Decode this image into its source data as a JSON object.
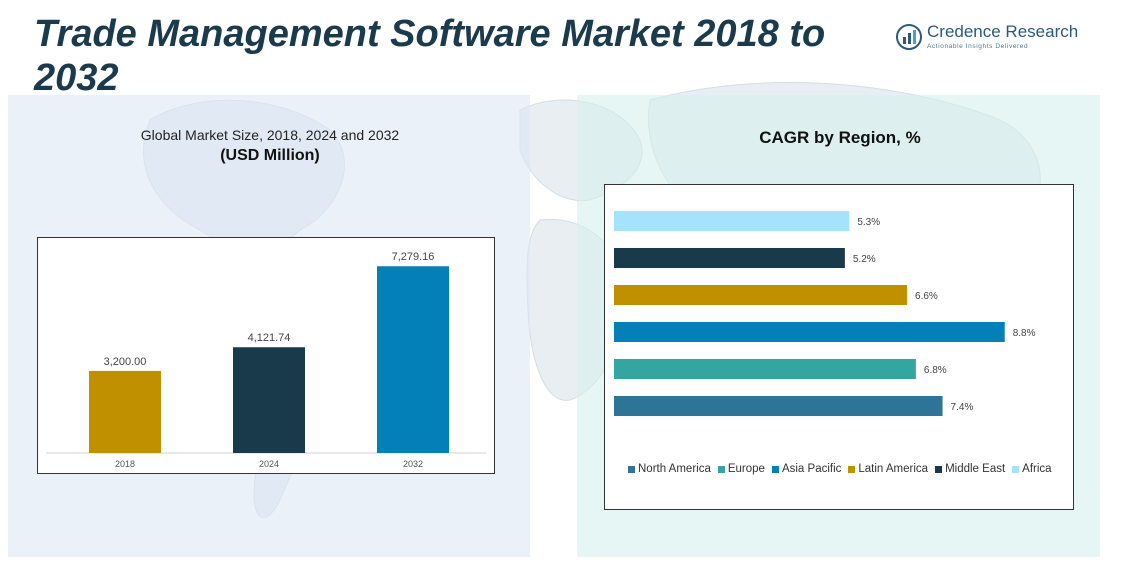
{
  "header": {
    "title": "Trade Management Software Market 2018 to 2032",
    "logo_name": "Credence Research",
    "logo_tagline": "Actionable Insights Delivered"
  },
  "left_panel": {
    "subtitle": "Global Market Size, 2018, 2024 and 2032",
    "unit": "(USD Million)"
  },
  "right_panel": {
    "title": "CAGR by Region, %"
  },
  "colors": {
    "title": "#1b3a4b",
    "bar_2018": "#c09000",
    "bar_2024": "#183a4a",
    "bar_2032": "#0480b8"
  },
  "chart_data": [
    {
      "type": "bar",
      "title": "Global Market Size, 2018, 2024 and 2032",
      "ylabel": "(USD Million)",
      "categories": [
        "2018",
        "2024",
        "2032"
      ],
      "values": [
        3200.0,
        4121.74,
        7279.16
      ],
      "value_labels": [
        "3,200.00",
        "4,121.74",
        "7,279.16"
      ],
      "colors": [
        "#c09000",
        "#183a4a",
        "#0480b8"
      ],
      "ylim": [
        0,
        8000
      ],
      "grid": false
    },
    {
      "type": "bar",
      "orientation": "horizontal",
      "title": "CAGR by Region, %",
      "categories": [
        "Africa",
        "Middle East",
        "Latin America",
        "Asia Pacific",
        "Europe",
        "North America"
      ],
      "values": [
        5.3,
        5.2,
        6.6,
        8.8,
        6.8,
        7.4
      ],
      "value_labels": [
        "5.3%",
        "5.2%",
        "6.6%",
        "8.8%",
        "6.8%",
        "7.4%"
      ],
      "colors": [
        "#a3e3fb",
        "#183a4a",
        "#c09000",
        "#0480b8",
        "#33a6a2",
        "#2e7496"
      ],
      "legend": [
        {
          "label": "North America",
          "color": "#2e7496"
        },
        {
          "label": "Europe",
          "color": "#33a6a2"
        },
        {
          "label": "Asia Pacific",
          "color": "#0480b8"
        },
        {
          "label": "Latin America",
          "color": "#c09000"
        },
        {
          "label": "Middle East",
          "color": "#183a4a"
        },
        {
          "label": "Africa",
          "color": "#a3e3fb"
        }
      ],
      "legend_position": "bottom",
      "xlim": [
        0,
        10
      ],
      "grid": false
    }
  ]
}
